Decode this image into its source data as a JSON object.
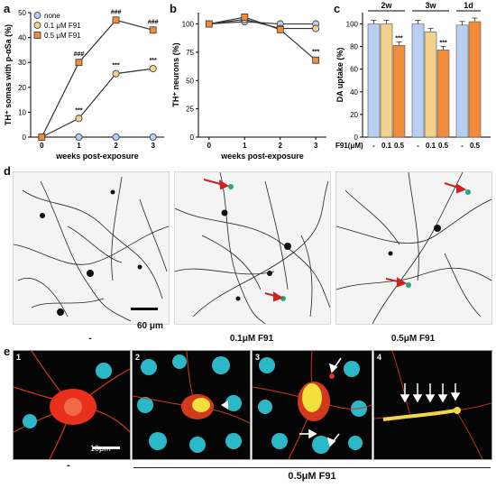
{
  "panel_labels": {
    "a": "a",
    "b": "b",
    "c": "c",
    "d": "d",
    "e": "e"
  },
  "chart_data": [
    {
      "id": "a",
      "type": "line",
      "ylabel": "TH⁺ somas with p-αSa (%)",
      "xlabel": "weeks post-exposure",
      "x": [
        0,
        1,
        2,
        3
      ],
      "xticks": [
        "0",
        "1",
        "2",
        "3"
      ],
      "yticks": [
        "0",
        "10",
        "20",
        "30",
        "40",
        "50"
      ],
      "ylim": [
        0,
        50
      ],
      "legend": [
        "none",
        "0.1 μM F91",
        "0.5 μM F91"
      ],
      "series": [
        {
          "name": "none",
          "values": [
            0,
            0,
            0,
            0
          ],
          "color": "#b9cff0"
        },
        {
          "name": "0.1 μM F91",
          "values": [
            0,
            7.5,
            25.5,
            27.5
          ],
          "color": "#f0d28c",
          "marks": [
            "",
            "***",
            "***",
            "***"
          ]
        },
        {
          "name": "0.5 μM F91",
          "values": [
            0,
            30,
            47,
            43
          ],
          "color": "#f08c3c",
          "marks": [
            "",
            "###",
            "###",
            "###"
          ]
        }
      ]
    },
    {
      "id": "b",
      "type": "line",
      "ylabel": "TH⁺ neurons (%)",
      "xlabel": "weeks post-exposure",
      "x": [
        0,
        1,
        2,
        3
      ],
      "xticks": [
        "0",
        "1",
        "2",
        "3"
      ],
      "yticks": [
        "0",
        "25",
        "50",
        "75",
        "100"
      ],
      "ylim": [
        0,
        110
      ],
      "series": [
        {
          "name": "none",
          "values": [
            100,
            102,
            100,
            100
          ],
          "color": "#b9cff0"
        },
        {
          "name": "0.1 μM F91",
          "values": [
            100,
            104,
            96,
            96
          ],
          "color": "#f0d28c"
        },
        {
          "name": "0.5 μM F91",
          "values": [
            100,
            106,
            95,
            68
          ],
          "color": "#f08c3c",
          "marks": [
            "",
            "",
            "",
            "***"
          ]
        }
      ]
    },
    {
      "id": "c",
      "type": "bar",
      "ylabel": "DA uptake (%)",
      "xlabel": "F91(μM)",
      "yticks": [
        "0",
        "20",
        "40",
        "60",
        "80",
        "100"
      ],
      "ylim": [
        0,
        110
      ],
      "groups": [
        {
          "label": "2w",
          "bars": [
            {
              "cat": "-",
              "value": 100,
              "color": "#b9cff0"
            },
            {
              "cat": "0.1",
              "value": 100,
              "color": "#f0d28c"
            },
            {
              "cat": "0.5",
              "value": 81,
              "color": "#f08c3c",
              "mark": "***"
            }
          ]
        },
        {
          "label": "3w",
          "bars": [
            {
              "cat": "-",
              "value": 100,
              "color": "#b9cff0"
            },
            {
              "cat": "0.1",
              "value": 93,
              "color": "#f0d28c"
            },
            {
              "cat": "0.5",
              "value": 77,
              "color": "#f08c3c",
              "mark": "***"
            }
          ]
        },
        {
          "label": "1d",
          "bars": [
            {
              "cat": "-",
              "value": 99,
              "color": "#b9cff0"
            },
            {
              "cat": "0.5",
              "value": 102,
              "color": "#f08c3c"
            }
          ]
        }
      ]
    }
  ],
  "panel_d": {
    "captions": [
      "-",
      "0.1μM F91",
      "0.5μM F91"
    ],
    "scalebar": "60 μm"
  },
  "panel_e": {
    "numbers": [
      "1",
      "2",
      "3",
      "4"
    ],
    "scalebar": "10μm",
    "caption_left": "-",
    "caption_right": "0.5μM F91"
  }
}
